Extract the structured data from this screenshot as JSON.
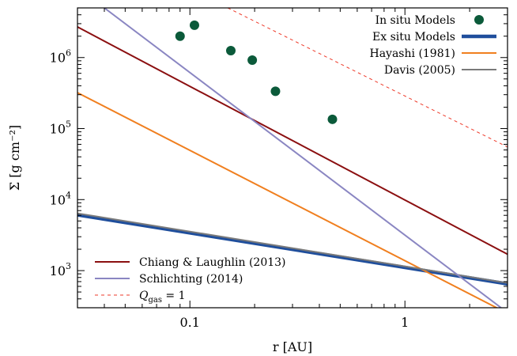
{
  "chart_data": {
    "type": "line",
    "xlabel": "r [AU]",
    "ylabel": "Σ [g cm⁻²]",
    "x_scale": "log",
    "y_scale": "log",
    "xlim": [
      0.03,
      3.0
    ],
    "ylim": [
      300,
      5000000
    ],
    "x_ticks": [
      {
        "value": 0.1,
        "label": "0.1"
      },
      {
        "value": 1,
        "label": "1"
      }
    ],
    "y_ticks": [
      {
        "value": 1000,
        "base": "10",
        "exp": "3"
      },
      {
        "value": 10000,
        "base": "10",
        "exp": "4"
      },
      {
        "value": 100000,
        "base": "10",
        "exp": "5"
      },
      {
        "value": 1000000,
        "base": "10",
        "exp": "6"
      }
    ],
    "grid": false,
    "points": {
      "name": "In situ Models",
      "color": "#0b5a3a",
      "x": [
        0.09,
        0.105,
        0.155,
        0.195,
        0.25,
        0.46
      ],
      "y": [
        2000000,
        2850000,
        1250000,
        920000,
        335000,
        135000
      ]
    },
    "series": [
      {
        "name": "Ex situ Models",
        "kind": "power_law",
        "color": "#1f4e9c",
        "width": 4.5,
        "dash": "",
        "x": [
          0.03,
          3.0
        ],
        "y": [
          6100,
          650
        ]
      },
      {
        "name": "Hayashi (1981)",
        "kind": "power_law",
        "color": "#f07f1f",
        "width": 2,
        "dash": "",
        "x": [
          0.03,
          3.0
        ],
        "y": [
          320000,
          250
        ]
      },
      {
        "name": "Davis (2005)",
        "kind": "power_law",
        "color": "#7a7a7a",
        "width": 2,
        "dash": "",
        "x": [
          0.03,
          3.0
        ],
        "y": [
          6400,
          670
        ]
      },
      {
        "name": "Chiang & Laughlin (2013)",
        "kind": "power_law",
        "color": "#8b0f10",
        "width": 2,
        "dash": "",
        "x": [
          0.03,
          3.0
        ],
        "y": [
          2700000,
          1700
        ]
      },
      {
        "name": "Schlichting (2014)",
        "kind": "power_law",
        "color": "#8a86c2",
        "width": 2,
        "dash": "",
        "x": [
          0.04,
          2.8
        ],
        "y": [
          5000000,
          300
        ]
      },
      {
        "name": "Q_gas = 1",
        "kind": "power_law",
        "color": "#ee3a2a",
        "width": 1,
        "dash": "4,4",
        "x": [
          0.15,
          3.0
        ],
        "y": [
          5000000,
          55000
        ]
      }
    ],
    "legend_top": {
      "placement": "top-right",
      "entries": [
        {
          "label": "In situ Models",
          "marker": "point",
          "color": "#0b5a3a"
        },
        {
          "label": "Ex situ Models",
          "marker": "line",
          "color": "#1f4e9c",
          "width": 4.5,
          "dash": ""
        },
        {
          "label": "Hayashi (1981)",
          "marker": "line",
          "color": "#f07f1f",
          "width": 2,
          "dash": ""
        },
        {
          "label": "Davis (2005)",
          "marker": "line",
          "color": "#7a7a7a",
          "width": 2,
          "dash": ""
        }
      ]
    },
    "legend_bottom": {
      "placement": "bottom-left",
      "entries": [
        {
          "label": "Chiang & Laughlin (2013)",
          "marker": "line",
          "color": "#8b0f10",
          "width": 2,
          "dash": ""
        },
        {
          "label": "Schlichting (2014)",
          "marker": "line",
          "color": "#8a86c2",
          "width": 2,
          "dash": ""
        },
        {
          "label_main": "Q",
          "label_sub": "gas",
          "label_tail": " = 1",
          "marker": "line",
          "color": "#ee3a2a",
          "width": 1,
          "dash": "4,4"
        }
      ]
    }
  }
}
